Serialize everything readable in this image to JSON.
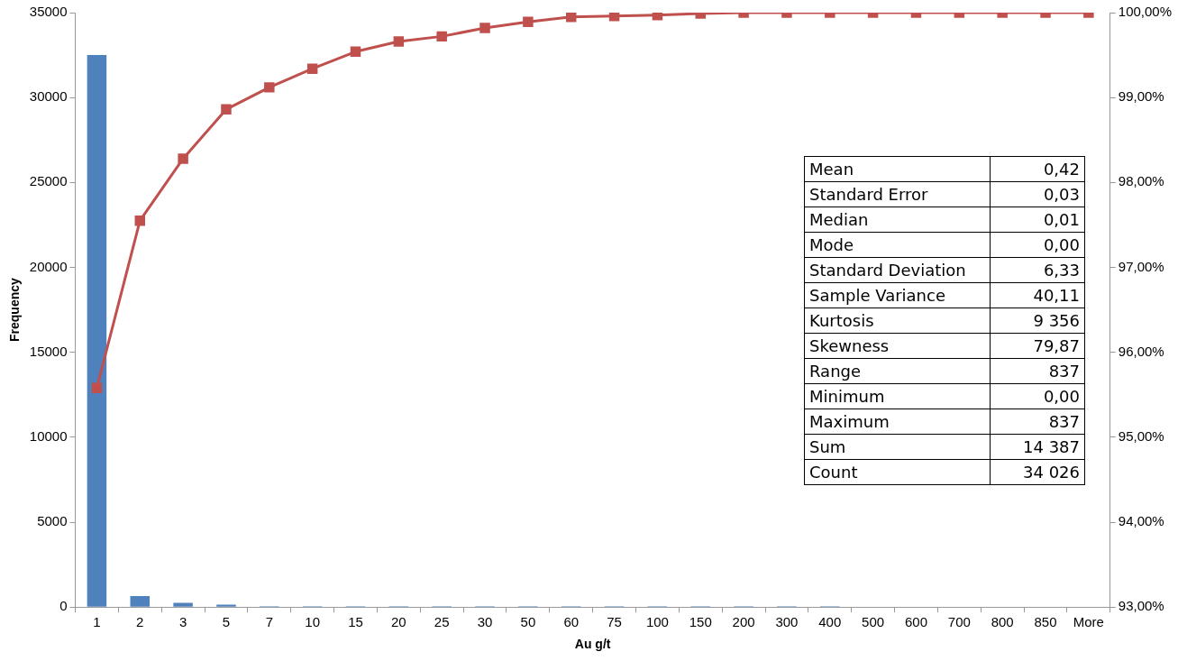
{
  "chart_data": {
    "type": "bar",
    "xlabel": "Au g/t",
    "ylabel": "Frequency",
    "categories": [
      "1",
      "2",
      "3",
      "5",
      "7",
      "10",
      "15",
      "20",
      "25",
      "30",
      "50",
      "60",
      "75",
      "100",
      "150",
      "200",
      "300",
      "400",
      "500",
      "600",
      "700",
      "800",
      "850",
      "More"
    ],
    "series": [
      {
        "color": "#4f81bd",
        "values": [
          32500,
          650,
          250,
          150,
          50,
          50,
          50,
          50,
          50,
          50,
          50,
          50,
          50,
          50,
          50,
          50,
          50,
          50,
          0,
          0,
          0,
          0,
          30,
          0
        ]
      },
      {
        "type": "line",
        "axis": "y2",
        "color": "#c0504d",
        "marker": "square",
        "values": [
          95.58,
          97.55,
          98.28,
          98.86,
          99.12,
          99.34,
          99.54,
          99.66,
          99.72,
          99.82,
          99.89,
          99.95,
          99.96,
          99.97,
          99.99,
          100,
          100,
          100,
          100,
          100,
          100,
          100,
          100,
          100
        ]
      }
    ],
    "ylim": [
      0,
      35000
    ],
    "yticks": [
      0,
      5000,
      10000,
      15000,
      20000,
      25000,
      30000,
      35000
    ],
    "y2lim": [
      93,
      100
    ],
    "y2ticks": [
      {
        "value": 93,
        "label": "93,00%"
      },
      {
        "value": 94,
        "label": "94,00%"
      },
      {
        "value": 95,
        "label": "95,00%"
      },
      {
        "value": 96,
        "label": "96,00%"
      },
      {
        "value": 97,
        "label": "97,00%"
      },
      {
        "value": 98,
        "label": "98,00%"
      },
      {
        "value": 99,
        "label": "99,00%"
      },
      {
        "value": 100,
        "label": "100,00%"
      }
    ],
    "grid": false,
    "legend": false,
    "annotations": [
      "Mean",
      "0,42",
      "Standard Error",
      "0,03",
      "Median",
      "0,01",
      "Mode",
      "0,00",
      "Standard Deviation",
      "6,33",
      "Sample Variance",
      "40,11",
      "Kurtosis",
      "9 356",
      "Skewness",
      "79,87",
      "Range",
      "837",
      "Minimum",
      "0,00",
      "Maximum",
      "837",
      "Sum",
      "14 387",
      "Count",
      "34 026"
    ]
  }
}
